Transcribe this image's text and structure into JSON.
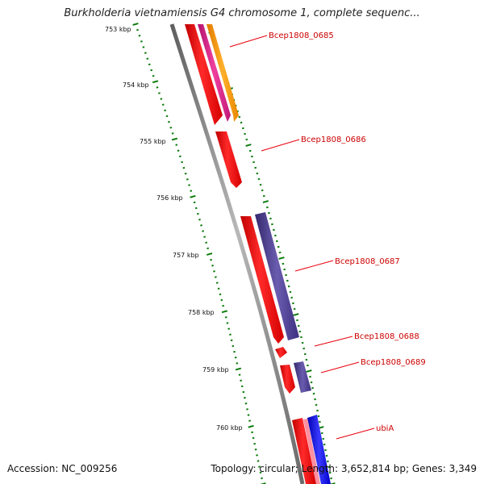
{
  "title": "Burkholderia vietnamiensis G4 chromosome 1, complete sequenc...",
  "footer": {
    "accession": "Accession: NC_009256",
    "summary": "Topology: circular; Length: 3,652,814 bp; Genes: 3,349"
  },
  "ruler": {
    "ticks": [
      "753 kbp",
      "754 kbp",
      "755 kbp",
      "756 kbp",
      "757 kbp",
      "758 kbp",
      "759 kbp",
      "760 kbp"
    ]
  },
  "genes": [
    "Bcep1808_0685",
    "Bcep1808_0686",
    "Bcep1808_0687",
    "Bcep1808_0688",
    "Bcep1808_0689",
    "ubiA"
  ],
  "colors": {
    "backbone": "#8a8a8a",
    "ruler_tick": "#0a7a0a",
    "cds_red": "#e8000b",
    "cds_magenta": "#e0228c",
    "cds_orange": "#ff9900",
    "cds_purple": "#4b3f8c",
    "cds_blue": "#0000ee",
    "label_red": "#cc0000",
    "gc_green": "#1a8a1a"
  }
}
